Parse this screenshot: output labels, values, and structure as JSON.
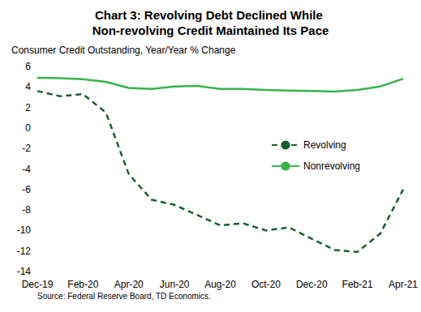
{
  "chart_data": {
    "type": "line",
    "title": "Chart 3: Revolving Debt Declined While Non-revolving Credit Maintained Its Pace",
    "y_label": "Consumer Credit Outstanding, Year/Year % Change",
    "source": "Source: Federal Reserve Board, TD Economics.",
    "categories": [
      "Dec-19",
      null,
      "Feb-20",
      null,
      "Apr-20",
      null,
      "Jun-20",
      null,
      "Aug-20",
      null,
      "Oct-20",
      null,
      "Dec-20",
      null,
      "Feb-21",
      null,
      "Apr-21"
    ],
    "series": [
      {
        "name": "Revolving",
        "color": "#1b5e2b",
        "line_style": "dashed",
        "values": [
          3.6,
          3.1,
          3.3,
          1.5,
          -4.5,
          -7.0,
          -7.5,
          -8.5,
          -9.5,
          -9.3,
          -10.0,
          -9.7,
          -10.8,
          -11.9,
          -12.1,
          -10.3,
          -6.0
        ]
      },
      {
        "name": "Nonrevolving",
        "color": "#35b44a",
        "line_style": "solid",
        "values": [
          4.9,
          4.85,
          4.75,
          4.5,
          3.9,
          3.8,
          4.05,
          4.1,
          3.8,
          3.8,
          3.7,
          3.65,
          3.6,
          3.55,
          3.7,
          4.05,
          4.8
        ]
      }
    ],
    "ylim": [
      -14,
      6
    ],
    "yticks": [
      -14,
      -12,
      -10,
      -8,
      -6,
      -4,
      -2,
      0,
      2,
      4,
      6
    ],
    "grid": false,
    "legend": "right"
  }
}
